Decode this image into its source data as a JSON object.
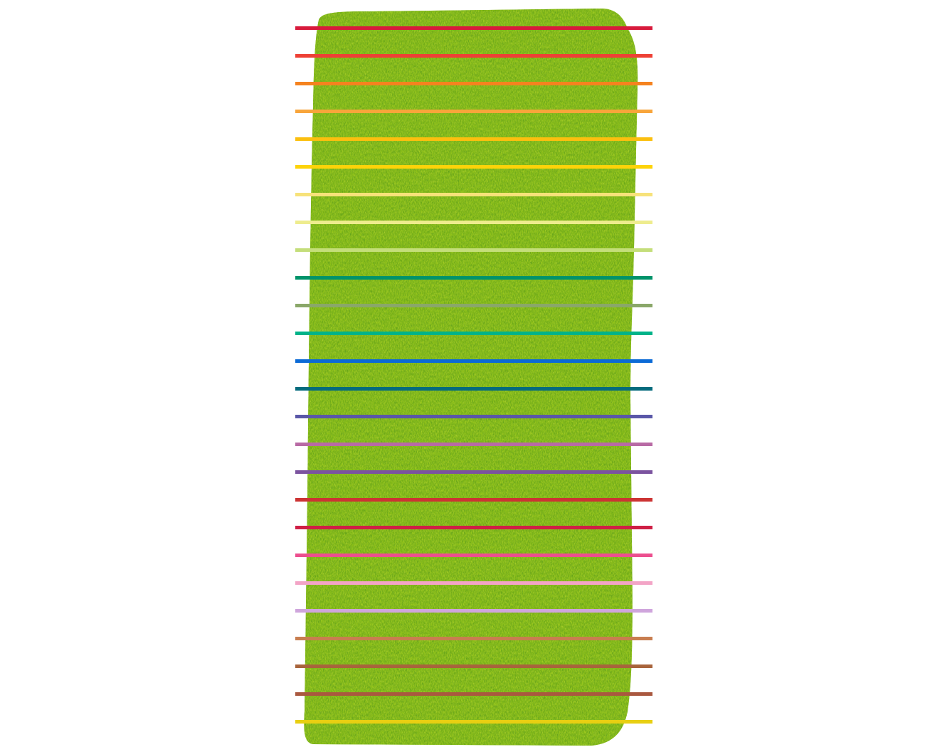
{
  "scene": {
    "subject": "green-shag-rug",
    "rug_colors": {
      "base": "#8fc21f",
      "light": "#c6dc3a",
      "dark": "#3f8f1e",
      "mid": "#6aac22"
    }
  },
  "stripes": [
    {
      "color": "#d81a3c"
    },
    {
      "color": "#ee4035"
    },
    {
      "color": "#f5821f"
    },
    {
      "color": "#f8a53b"
    },
    {
      "color": "#fbbf0f"
    },
    {
      "color": "#fdd309"
    },
    {
      "color": "#f7e27a"
    },
    {
      "color": "#eeec8e"
    },
    {
      "color": "#c4de7a"
    },
    {
      "color": "#00936a"
    },
    {
      "color": "#8aa769"
    },
    {
      "color": "#00b389"
    },
    {
      "color": "#0b6ad6"
    },
    {
      "color": "#056b7d"
    },
    {
      "color": "#5a57a8"
    },
    {
      "color": "#b86aa5"
    },
    {
      "color": "#7b539f"
    },
    {
      "color": "#cc3333"
    },
    {
      "color": "#cf1f45"
    },
    {
      "color": "#ec4f8f"
    },
    {
      "color": "#f3a4c6"
    },
    {
      "color": "#cfa5dc"
    },
    {
      "color": "#c87e50"
    },
    {
      "color": "#a8643c"
    },
    {
      "color": "#a9583f"
    },
    {
      "color": "#e8cf12"
    }
  ]
}
